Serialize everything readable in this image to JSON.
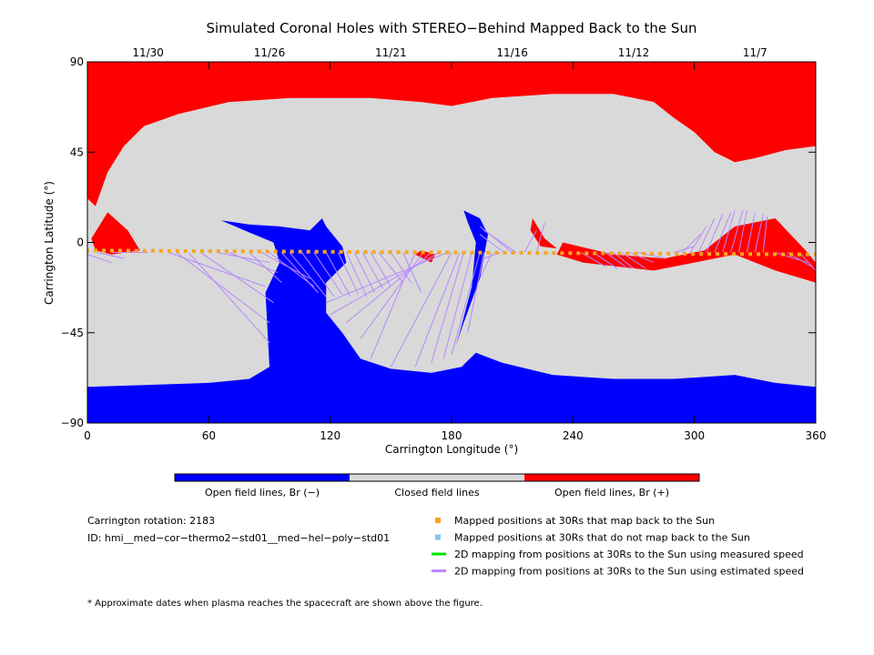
{
  "chart_data": {
    "type": "heatmap",
    "title": "Simulated Coronal Holes with STEREO−Behind Mapped Back to the Sun",
    "xlabel": "Carrington Longitude (°)",
    "ylabel": "Carrington Latitude (°)",
    "xlim": [
      0,
      360
    ],
    "ylim": [
      -90,
      90
    ],
    "x_ticks": [
      0,
      60,
      120,
      180,
      240,
      300,
      360
    ],
    "y_ticks": [
      90,
      45,
      0,
      -45,
      -90
    ],
    "y_tick_labels": [
      "90",
      "45",
      "0",
      "−45",
      "−90"
    ],
    "top_axis": {
      "labels": [
        "11/30",
        "11/26",
        "11/21",
        "11/16",
        "11/12",
        "11/7"
      ],
      "longitudes": [
        30,
        90,
        150,
        210,
        270,
        330
      ]
    },
    "grid": false,
    "colorbar": {
      "segments": [
        {
          "label": "Open field lines, Br (−)",
          "color": "#0000ff"
        },
        {
          "label": "Closed field lines",
          "color": "#d9d9d9"
        },
        {
          "label": "Open field lines, Br (+)",
          "color": "#ff0000"
        }
      ]
    },
    "regions": {
      "north_positive_hole": [
        [
          0,
          90
        ],
        [
          0,
          22
        ],
        [
          4,
          18
        ],
        [
          10,
          35
        ],
        [
          18,
          48
        ],
        [
          28,
          58
        ],
        [
          45,
          64
        ],
        [
          70,
          70
        ],
        [
          100,
          72
        ],
        [
          140,
          72
        ],
        [
          165,
          70
        ],
        [
          180,
          68
        ],
        [
          200,
          72
        ],
        [
          230,
          74
        ],
        [
          260,
          74
        ],
        [
          280,
          70
        ],
        [
          290,
          62
        ],
        [
          300,
          55
        ],
        [
          310,
          45
        ],
        [
          320,
          40
        ],
        [
          330,
          42
        ],
        [
          345,
          46
        ],
        [
          360,
          48
        ],
        [
          360,
          90
        ]
      ],
      "south_negative_hole": [
        [
          0,
          -90
        ],
        [
          0,
          -72
        ],
        [
          30,
          -71
        ],
        [
          60,
          -70
        ],
        [
          80,
          -68
        ],
        [
          90,
          -62
        ],
        [
          88,
          -25
        ],
        [
          95,
          -10
        ],
        [
          92,
          0
        ],
        [
          80,
          5
        ],
        [
          66,
          11
        ],
        [
          80,
          9
        ],
        [
          95,
          8
        ],
        [
          110,
          6
        ],
        [
          116,
          12
        ],
        [
          118,
          8
        ],
        [
          126,
          -2
        ],
        [
          128,
          -10
        ],
        [
          118,
          -20
        ],
        [
          118,
          -35
        ],
        [
          126,
          -45
        ],
        [
          135,
          -58
        ],
        [
          150,
          -63
        ],
        [
          170,
          -65
        ],
        [
          185,
          -62
        ],
        [
          192,
          -55
        ],
        [
          205,
          -60
        ],
        [
          230,
          -66
        ],
        [
          260,
          -68
        ],
        [
          290,
          -68
        ],
        [
          320,
          -66
        ],
        [
          340,
          -70
        ],
        [
          360,
          -72
        ],
        [
          360,
          -90
        ]
      ],
      "equatorial_positive_hole": [
        [
          235,
          0
        ],
        [
          260,
          -6
        ],
        [
          285,
          -8
        ],
        [
          305,
          -4
        ],
        [
          320,
          8
        ],
        [
          340,
          12
        ],
        [
          355,
          -4
        ],
        [
          360,
          -10
        ],
        [
          360,
          -20
        ],
        [
          340,
          -14
        ],
        [
          320,
          -6
        ],
        [
          300,
          -10
        ],
        [
          280,
          -14
        ],
        [
          262,
          -12
        ],
        [
          245,
          -10
        ],
        [
          232,
          -6
        ]
      ],
      "small_positive_patches": [
        [
          [
            10,
            15
          ],
          [
            20,
            6
          ],
          [
            26,
            -4
          ],
          [
            12,
            -6
          ],
          [
            4,
            -4
          ],
          [
            2,
            2
          ]
        ],
        [
          [
            165,
            -4
          ],
          [
            172,
            -6
          ],
          [
            170,
            -10
          ],
          [
            162,
            -6
          ]
        ],
        [
          [
            220,
            12
          ],
          [
            226,
            2
          ],
          [
            232,
            -3
          ],
          [
            224,
            -2
          ],
          [
            219,
            6
          ]
        ]
      ],
      "small_negative_strip": [
        [
          186,
          16
        ],
        [
          194,
          12
        ],
        [
          198,
          4
        ],
        [
          194,
          -18
        ],
        [
          186,
          -40
        ],
        [
          182,
          -52
        ],
        [
          184,
          -45
        ],
        [
          190,
          -22
        ],
        [
          192,
          0
        ],
        [
          188,
          10
        ]
      ]
    },
    "mapped_positions_30Rs": {
      "longitude_start": 0,
      "longitude_end": 360,
      "latitude_start": -4,
      "latitude_end": -6,
      "count": 90
    },
    "mapping_lines_estimated_speed": [
      [
        [
          0,
          -6
        ],
        [
          12,
          -10
        ]
      ],
      [
        [
          5,
          -5
        ],
        [
          18,
          -8
        ]
      ],
      [
        [
          12,
          -5
        ],
        [
          30,
          -5
        ]
      ],
      [
        [
          40,
          -5
        ],
        [
          88,
          -22
        ]
      ],
      [
        [
          44,
          -5
        ],
        [
          90,
          -40
        ]
      ],
      [
        [
          50,
          -5
        ],
        [
          90,
          -50
        ]
      ],
      [
        [
          56,
          -5
        ],
        [
          92,
          -30
        ]
      ],
      [
        [
          64,
          -5
        ],
        [
          90,
          -10
        ]
      ],
      [
        [
          70,
          -5
        ],
        [
          94,
          -15
        ]
      ],
      [
        [
          80,
          -5
        ],
        [
          96,
          -20
        ]
      ],
      [
        [
          86,
          -5
        ],
        [
          110,
          -18
        ]
      ],
      [
        [
          90,
          -5
        ],
        [
          112,
          -22
        ]
      ],
      [
        [
          96,
          -5
        ],
        [
          114,
          -25
        ]
      ],
      [
        [
          100,
          -5
        ],
        [
          118,
          -27
        ]
      ],
      [
        [
          106,
          -5
        ],
        [
          122,
          -27
        ]
      ],
      [
        [
          112,
          -5
        ],
        [
          126,
          -26
        ]
      ],
      [
        [
          118,
          -5
        ],
        [
          130,
          -27
        ]
      ],
      [
        [
          124,
          -5
        ],
        [
          134,
          -26
        ]
      ],
      [
        [
          128,
          -5
        ],
        [
          138,
          -27
        ]
      ],
      [
        [
          132,
          -5
        ],
        [
          142,
          -25
        ]
      ],
      [
        [
          136,
          -5
        ],
        [
          146,
          -23
        ]
      ],
      [
        [
          140,
          -5
        ],
        [
          150,
          -22
        ]
      ],
      [
        [
          144,
          -5
        ],
        [
          156,
          -20
        ]
      ],
      [
        [
          150,
          -5
        ],
        [
          160,
          -20
        ]
      ],
      [
        [
          156,
          -5
        ],
        [
          165,
          -25
        ]
      ],
      [
        [
          162,
          -5
        ],
        [
          140,
          -58
        ]
      ],
      [
        [
          166,
          -5
        ],
        [
          135,
          -48
        ]
      ],
      [
        [
          170,
          -5
        ],
        [
          128,
          -40
        ]
      ],
      [
        [
          174,
          -5
        ],
        [
          120,
          -36
        ]
      ],
      [
        [
          178,
          -5
        ],
        [
          118,
          -30
        ]
      ],
      [
        [
          180,
          -5
        ],
        [
          150,
          -62
        ]
      ],
      [
        [
          184,
          -5
        ],
        [
          162,
          -62
        ]
      ],
      [
        [
          186,
          -5
        ],
        [
          170,
          -60
        ]
      ],
      [
        [
          190,
          -5
        ],
        [
          176,
          -58
        ]
      ],
      [
        [
          194,
          -5
        ],
        [
          180,
          -56
        ]
      ],
      [
        [
          196,
          -5
        ],
        [
          188,
          -45
        ]
      ],
      [
        [
          200,
          -5
        ],
        [
          194,
          -18
        ]
      ],
      [
        [
          204,
          -5
        ],
        [
          196,
          -8
        ]
      ],
      [
        [
          206,
          -5
        ],
        [
          194,
          4
        ]
      ],
      [
        [
          210,
          -5
        ],
        [
          194,
          8
        ]
      ],
      [
        [
          212,
          -5
        ],
        [
          196,
          6
        ]
      ],
      [
        [
          216,
          -5
        ],
        [
          222,
          6
        ]
      ],
      [
        [
          222,
          -5
        ],
        [
          226,
          10
        ]
      ],
      [
        [
          244,
          -5
        ],
        [
          256,
          -12
        ]
      ],
      [
        [
          250,
          -5
        ],
        [
          262,
          -13
        ]
      ],
      [
        [
          256,
          -5
        ],
        [
          266,
          -12
        ]
      ],
      [
        [
          260,
          -5
        ],
        [
          270,
          -13
        ]
      ],
      [
        [
          264,
          -5
        ],
        [
          276,
          -13
        ]
      ],
      [
        [
          268,
          -5
        ],
        [
          280,
          -10
        ]
      ],
      [
        [
          272,
          -5
        ],
        [
          286,
          -8
        ]
      ],
      [
        [
          290,
          -5
        ],
        [
          300,
          -2
        ]
      ],
      [
        [
          294,
          -5
        ],
        [
          303,
          4
        ]
      ],
      [
        [
          298,
          -5
        ],
        [
          306,
          8
        ]
      ],
      [
        [
          302,
          -5
        ],
        [
          310,
          12
        ]
      ],
      [
        [
          306,
          -5
        ],
        [
          314,
          14
        ]
      ],
      [
        [
          310,
          -5
        ],
        [
          318,
          15
        ]
      ],
      [
        [
          314,
          -5
        ],
        [
          320,
          16
        ]
      ],
      [
        [
          318,
          -5
        ],
        [
          324,
          16
        ]
      ],
      [
        [
          322,
          -5
        ],
        [
          326,
          16
        ]
      ],
      [
        [
          326,
          -5
        ],
        [
          330,
          15
        ]
      ],
      [
        [
          330,
          -5
        ],
        [
          334,
          14
        ]
      ],
      [
        [
          334,
          -5
        ],
        [
          336,
          13
        ]
      ],
      [
        [
          340,
          -5
        ],
        [
          356,
          -10
        ]
      ],
      [
        [
          346,
          -5
        ],
        [
          358,
          -12
        ]
      ],
      [
        [
          352,
          -5
        ],
        [
          360,
          -14
        ]
      ]
    ],
    "legend": [
      {
        "label": "Mapped positions at 30Rs that map back to the Sun",
        "color": "#f5a623",
        "kind": "square"
      },
      {
        "label": "Mapped positions at 30Rs that do not map back to the Sun",
        "color": "#87c4f2",
        "kind": "square"
      },
      {
        "label": "2D mapping from positions at 30Rs to the Sun using measured speed",
        "color": "#00e600",
        "kind": "line"
      },
      {
        "label": "2D mapping from positions at 30Rs to the Sun using estimated speed",
        "color": "#b987ff",
        "kind": "line"
      }
    ]
  },
  "info": {
    "rotation": "Carrington rotation: 2183",
    "id": "ID: hmi__med−cor−thermo2−std01__med−hel−poly−std01",
    "footnote": "* Approximate dates when plasma reaches the spacecraft are shown above the figure."
  }
}
